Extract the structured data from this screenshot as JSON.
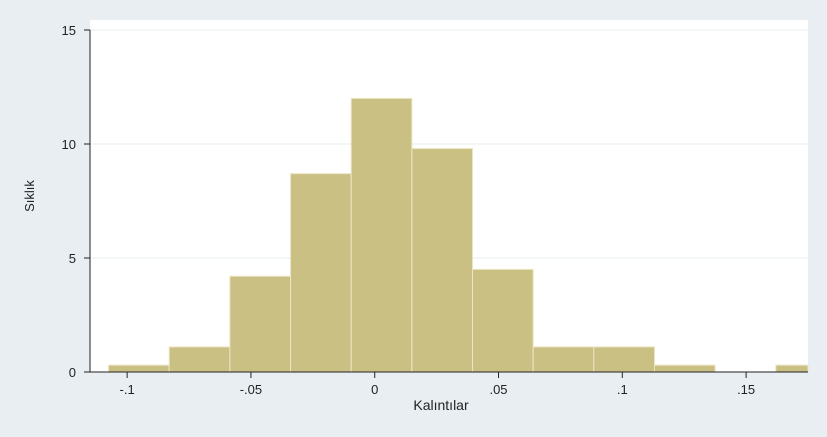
{
  "chart_data": {
    "type": "bar",
    "subtype": "histogram",
    "xlabel": "Kalıntılar",
    "ylabel": "Sıklık",
    "xlim": [
      -0.115,
      0.175
    ],
    "ylim": [
      0,
      15
    ],
    "x_ticks": [
      {
        "value": -0.1,
        "label": "-.1"
      },
      {
        "value": -0.05,
        "label": "-.05"
      },
      {
        "value": 0,
        "label": "0"
      },
      {
        "value": 0.05,
        "label": ".05"
      },
      {
        "value": 0.1,
        "label": ".1"
      },
      {
        "value": 0.15,
        "label": ".15"
      }
    ],
    "y_ticks": [
      {
        "value": 0,
        "label": "0"
      },
      {
        "value": 5,
        "label": "5"
      },
      {
        "value": 10,
        "label": "10"
      },
      {
        "value": 15,
        "label": "15"
      }
    ],
    "grid": true,
    "bin_width": 0.0245,
    "bins": [
      {
        "start": -0.1075,
        "end": -0.083,
        "value": 0.3
      },
      {
        "start": -0.083,
        "end": -0.0585,
        "value": 1.1
      },
      {
        "start": -0.0585,
        "end": -0.034,
        "value": 4.2
      },
      {
        "start": -0.034,
        "end": -0.0095,
        "value": 8.7
      },
      {
        "start": -0.0095,
        "end": 0.015,
        "value": 12.0
      },
      {
        "start": 0.015,
        "end": 0.0395,
        "value": 9.8
      },
      {
        "start": 0.0395,
        "end": 0.064,
        "value": 4.5
      },
      {
        "start": 0.064,
        "end": 0.0885,
        "value": 1.1
      },
      {
        "start": 0.0885,
        "end": 0.113,
        "value": 1.1
      },
      {
        "start": 0.113,
        "end": 0.1375,
        "value": 0.3
      },
      {
        "start": 0.1375,
        "end": 0.162,
        "value": 0
      },
      {
        "start": 0.162,
        "end": 0.1865,
        "value": 0.3
      }
    ],
    "colors": {
      "bar_fill": "#cbc083",
      "bar_edge": "#ece5c4",
      "outer_background": "#e8eef2",
      "plot_background": "#ffffff",
      "grid": "#e6ecef",
      "axis": "#222222"
    }
  }
}
